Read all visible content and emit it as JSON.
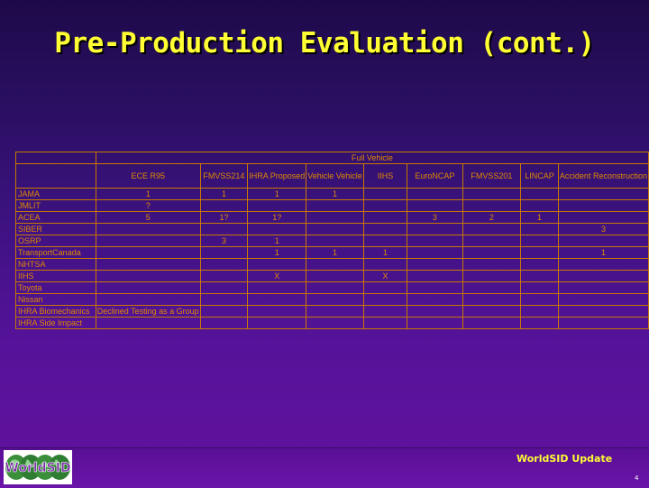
{
  "slide": {
    "title": "Pre-Production Evaluation (cont.)",
    "footer_text": "WorldSID Update",
    "page_number": "4",
    "logo_text": "WorldSID"
  },
  "table": {
    "group_header": "Full Vehicle",
    "columns": [
      "ECE R95",
      "FMVSS214",
      "IHRA Proposed",
      "Vehicle Vehicle",
      "IIHS",
      "EuroNCAP",
      "FMVSS201",
      "LINCAP",
      "Accident Reconstruction"
    ],
    "rows": [
      {
        "label": "JAMA",
        "cells": [
          "1",
          "1",
          "1",
          "1",
          "",
          "",
          "",
          "",
          ""
        ]
      },
      {
        "label": "JMLIT",
        "cells": [
          "?",
          "",
          "",
          "",
          "",
          "",
          "",
          "",
          ""
        ]
      },
      {
        "label": "ACEA",
        "cells": [
          "5",
          "1?",
          "1?",
          "",
          "",
          "3",
          "2",
          "1",
          ""
        ]
      },
      {
        "label": "SIBER",
        "cells": [
          "",
          "",
          "",
          "",
          "",
          "",
          "",
          "",
          "3"
        ]
      },
      {
        "label": "OSRP",
        "cells": [
          "",
          "3",
          "1",
          "",
          "",
          "",
          "",
          "",
          ""
        ]
      },
      {
        "label": "TransportCanada",
        "cells": [
          "",
          "",
          "1",
          "1",
          "1",
          "",
          "",
          "",
          "1"
        ]
      },
      {
        "label": "NHTSA",
        "cells": [
          "",
          "",
          "",
          "",
          "",
          "",
          "",
          "",
          ""
        ]
      },
      {
        "label": "IIHS",
        "cells": [
          "",
          "",
          "X",
          "",
          "X",
          "",
          "",
          "",
          ""
        ]
      },
      {
        "label": "Toyota",
        "cells": [
          "",
          "",
          "",
          "",
          "",
          "",
          "",
          "",
          ""
        ]
      },
      {
        "label": "Nissan",
        "cells": [
          "",
          "",
          "",
          "",
          "",
          "",
          "",
          "",
          ""
        ]
      },
      {
        "label": "IHRA Biomechanics",
        "note": "Declined Testing as a Group"
      },
      {
        "label": "IHRA Side Impact",
        "cells": [
          "",
          "",
          "",
          "",
          "",
          "",
          "",
          "",
          ""
        ]
      }
    ]
  }
}
